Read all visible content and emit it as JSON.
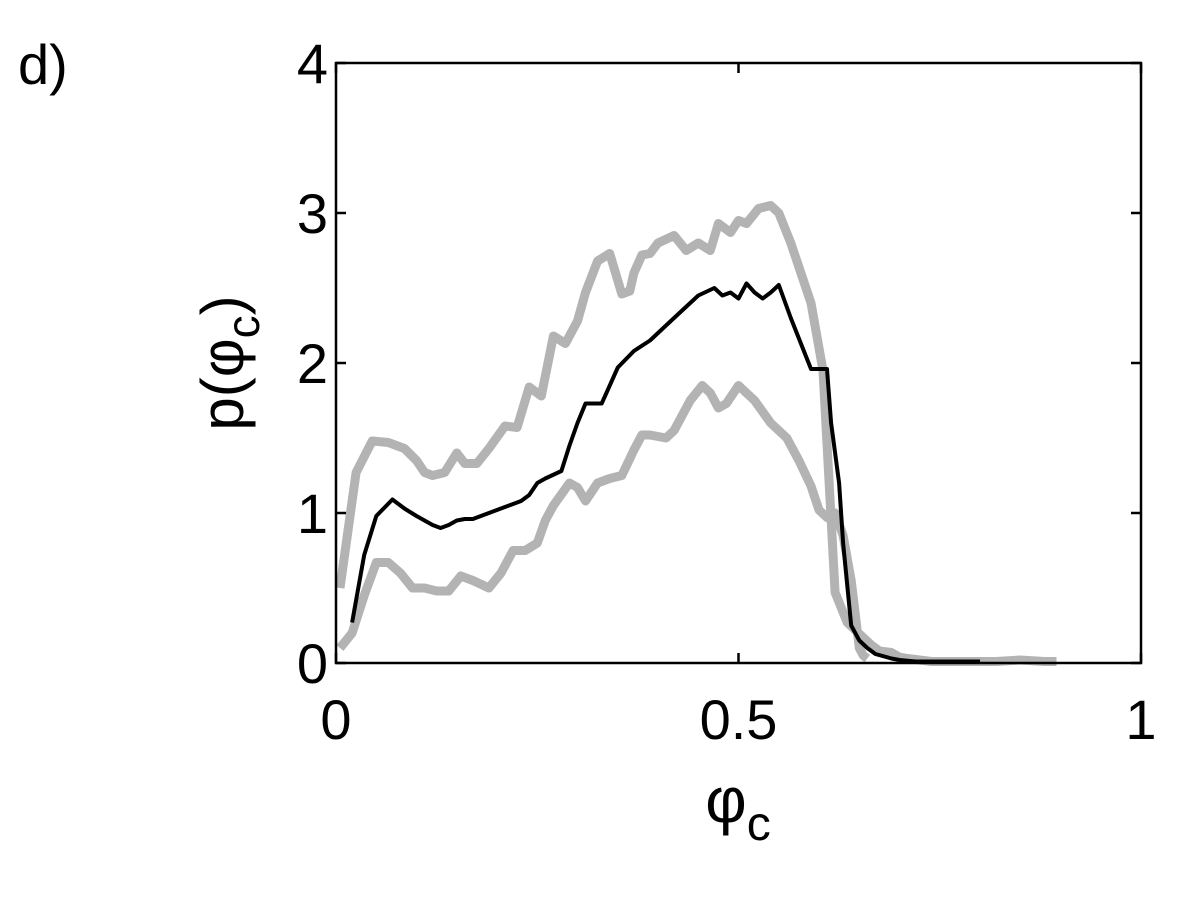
{
  "panel_label": "d)",
  "chart_data": {
    "type": "line",
    "xlabel": {
      "symbol": "φ",
      "sub": "c"
    },
    "ylabel": {
      "prefix": "p(",
      "symbol": "φ",
      "sub": "c",
      "suffix": ")"
    },
    "xlim": [
      0,
      1
    ],
    "ylim": [
      0,
      4
    ],
    "xticks": [
      0,
      0.5,
      1
    ],
    "xtick_labels": [
      "0",
      "0.5",
      "1"
    ],
    "yticks": [
      0,
      1,
      2,
      3,
      4
    ],
    "ytick_labels": [
      "0",
      "1",
      "2",
      "3",
      "4"
    ],
    "grid": false,
    "legend": "none",
    "series": [
      {
        "role": "upper",
        "color": "#b3b3b3",
        "x": [
          0.005,
          0.025,
          0.045,
          0.065,
          0.085,
          0.1,
          0.11,
          0.12,
          0.135,
          0.15,
          0.16,
          0.175,
          0.19,
          0.21,
          0.225,
          0.24,
          0.255,
          0.27,
          0.285,
          0.3,
          0.31,
          0.325,
          0.34,
          0.355,
          0.365,
          0.37,
          0.38,
          0.39,
          0.4,
          0.42,
          0.435,
          0.45,
          0.465,
          0.475,
          0.49,
          0.5,
          0.51,
          0.525,
          0.54,
          0.55,
          0.565,
          0.59,
          0.605,
          0.62,
          0.635,
          0.645,
          0.655,
          0.665,
          0.675,
          0.69,
          0.7,
          0.71,
          0.725,
          0.74,
          0.76,
          0.79,
          0.82,
          0.85,
          0.88,
          0.895
        ],
        "y": [
          0.5,
          1.27,
          1.48,
          1.47,
          1.43,
          1.35,
          1.27,
          1.25,
          1.27,
          1.4,
          1.33,
          1.33,
          1.43,
          1.58,
          1.57,
          1.84,
          1.78,
          2.18,
          2.13,
          2.28,
          2.47,
          2.68,
          2.73,
          2.46,
          2.48,
          2.6,
          2.72,
          2.73,
          2.8,
          2.85,
          2.75,
          2.8,
          2.75,
          2.93,
          2.87,
          2.95,
          2.93,
          3.03,
          3.05,
          3.0,
          2.8,
          2.4,
          1.95,
          0.47,
          0.27,
          0.22,
          0.17,
          0.12,
          0.08,
          0.07,
          0.04,
          0.03,
          0.02,
          0.01,
          0.01,
          0.01,
          0.01,
          0.02,
          0.01,
          0.01
        ]
      },
      {
        "role": "mean",
        "color": "#000000",
        "x": [
          0.02,
          0.035,
          0.05,
          0.07,
          0.085,
          0.1,
          0.12,
          0.13,
          0.14,
          0.15,
          0.16,
          0.17,
          0.19,
          0.21,
          0.22,
          0.23,
          0.24,
          0.25,
          0.26,
          0.28,
          0.29,
          0.3,
          0.31,
          0.32,
          0.33,
          0.35,
          0.37,
          0.39,
          0.41,
          0.43,
          0.45,
          0.47,
          0.48,
          0.49,
          0.5,
          0.51,
          0.52,
          0.53,
          0.54,
          0.55,
          0.565,
          0.59,
          0.6,
          0.61,
          0.615,
          0.625,
          0.63,
          0.64,
          0.65,
          0.66,
          0.67,
          0.69,
          0.7,
          0.72,
          0.75,
          0.8
        ],
        "y": [
          0.27,
          0.72,
          0.98,
          1.09,
          1.03,
          0.98,
          0.92,
          0.9,
          0.92,
          0.95,
          0.96,
          0.96,
          1.0,
          1.04,
          1.06,
          1.08,
          1.12,
          1.2,
          1.23,
          1.28,
          1.45,
          1.6,
          1.73,
          1.73,
          1.73,
          1.97,
          2.08,
          2.15,
          2.25,
          2.35,
          2.45,
          2.5,
          2.45,
          2.47,
          2.43,
          2.53,
          2.47,
          2.43,
          2.47,
          2.52,
          2.3,
          1.96,
          1.96,
          1.96,
          1.6,
          1.2,
          0.8,
          0.25,
          0.15,
          0.1,
          0.06,
          0.03,
          0.02,
          0.01,
          0.01,
          0.01
        ]
      },
      {
        "role": "lower",
        "color": "#b3b3b3",
        "x": [
          0.005,
          0.02,
          0.035,
          0.05,
          0.065,
          0.08,
          0.095,
          0.11,
          0.125,
          0.14,
          0.155,
          0.17,
          0.19,
          0.205,
          0.22,
          0.235,
          0.25,
          0.26,
          0.27,
          0.29,
          0.3,
          0.31,
          0.325,
          0.34,
          0.355,
          0.37,
          0.38,
          0.39,
          0.41,
          0.42,
          0.44,
          0.455,
          0.465,
          0.475,
          0.485,
          0.5,
          0.51,
          0.52,
          0.54,
          0.56,
          0.575,
          0.59,
          0.6,
          0.61,
          0.62,
          0.63,
          0.64,
          0.65,
          0.655,
          0.66
        ],
        "y": [
          0.1,
          0.2,
          0.45,
          0.67,
          0.67,
          0.6,
          0.5,
          0.5,
          0.48,
          0.48,
          0.58,
          0.55,
          0.5,
          0.6,
          0.75,
          0.75,
          0.8,
          0.95,
          1.05,
          1.2,
          1.17,
          1.08,
          1.2,
          1.23,
          1.25,
          1.42,
          1.52,
          1.52,
          1.5,
          1.55,
          1.75,
          1.85,
          1.8,
          1.7,
          1.73,
          1.85,
          1.8,
          1.75,
          1.6,
          1.5,
          1.35,
          1.18,
          1.02,
          0.97,
          1.0,
          0.85,
          0.55,
          0.1,
          0.05,
          0.03
        ]
      }
    ]
  }
}
